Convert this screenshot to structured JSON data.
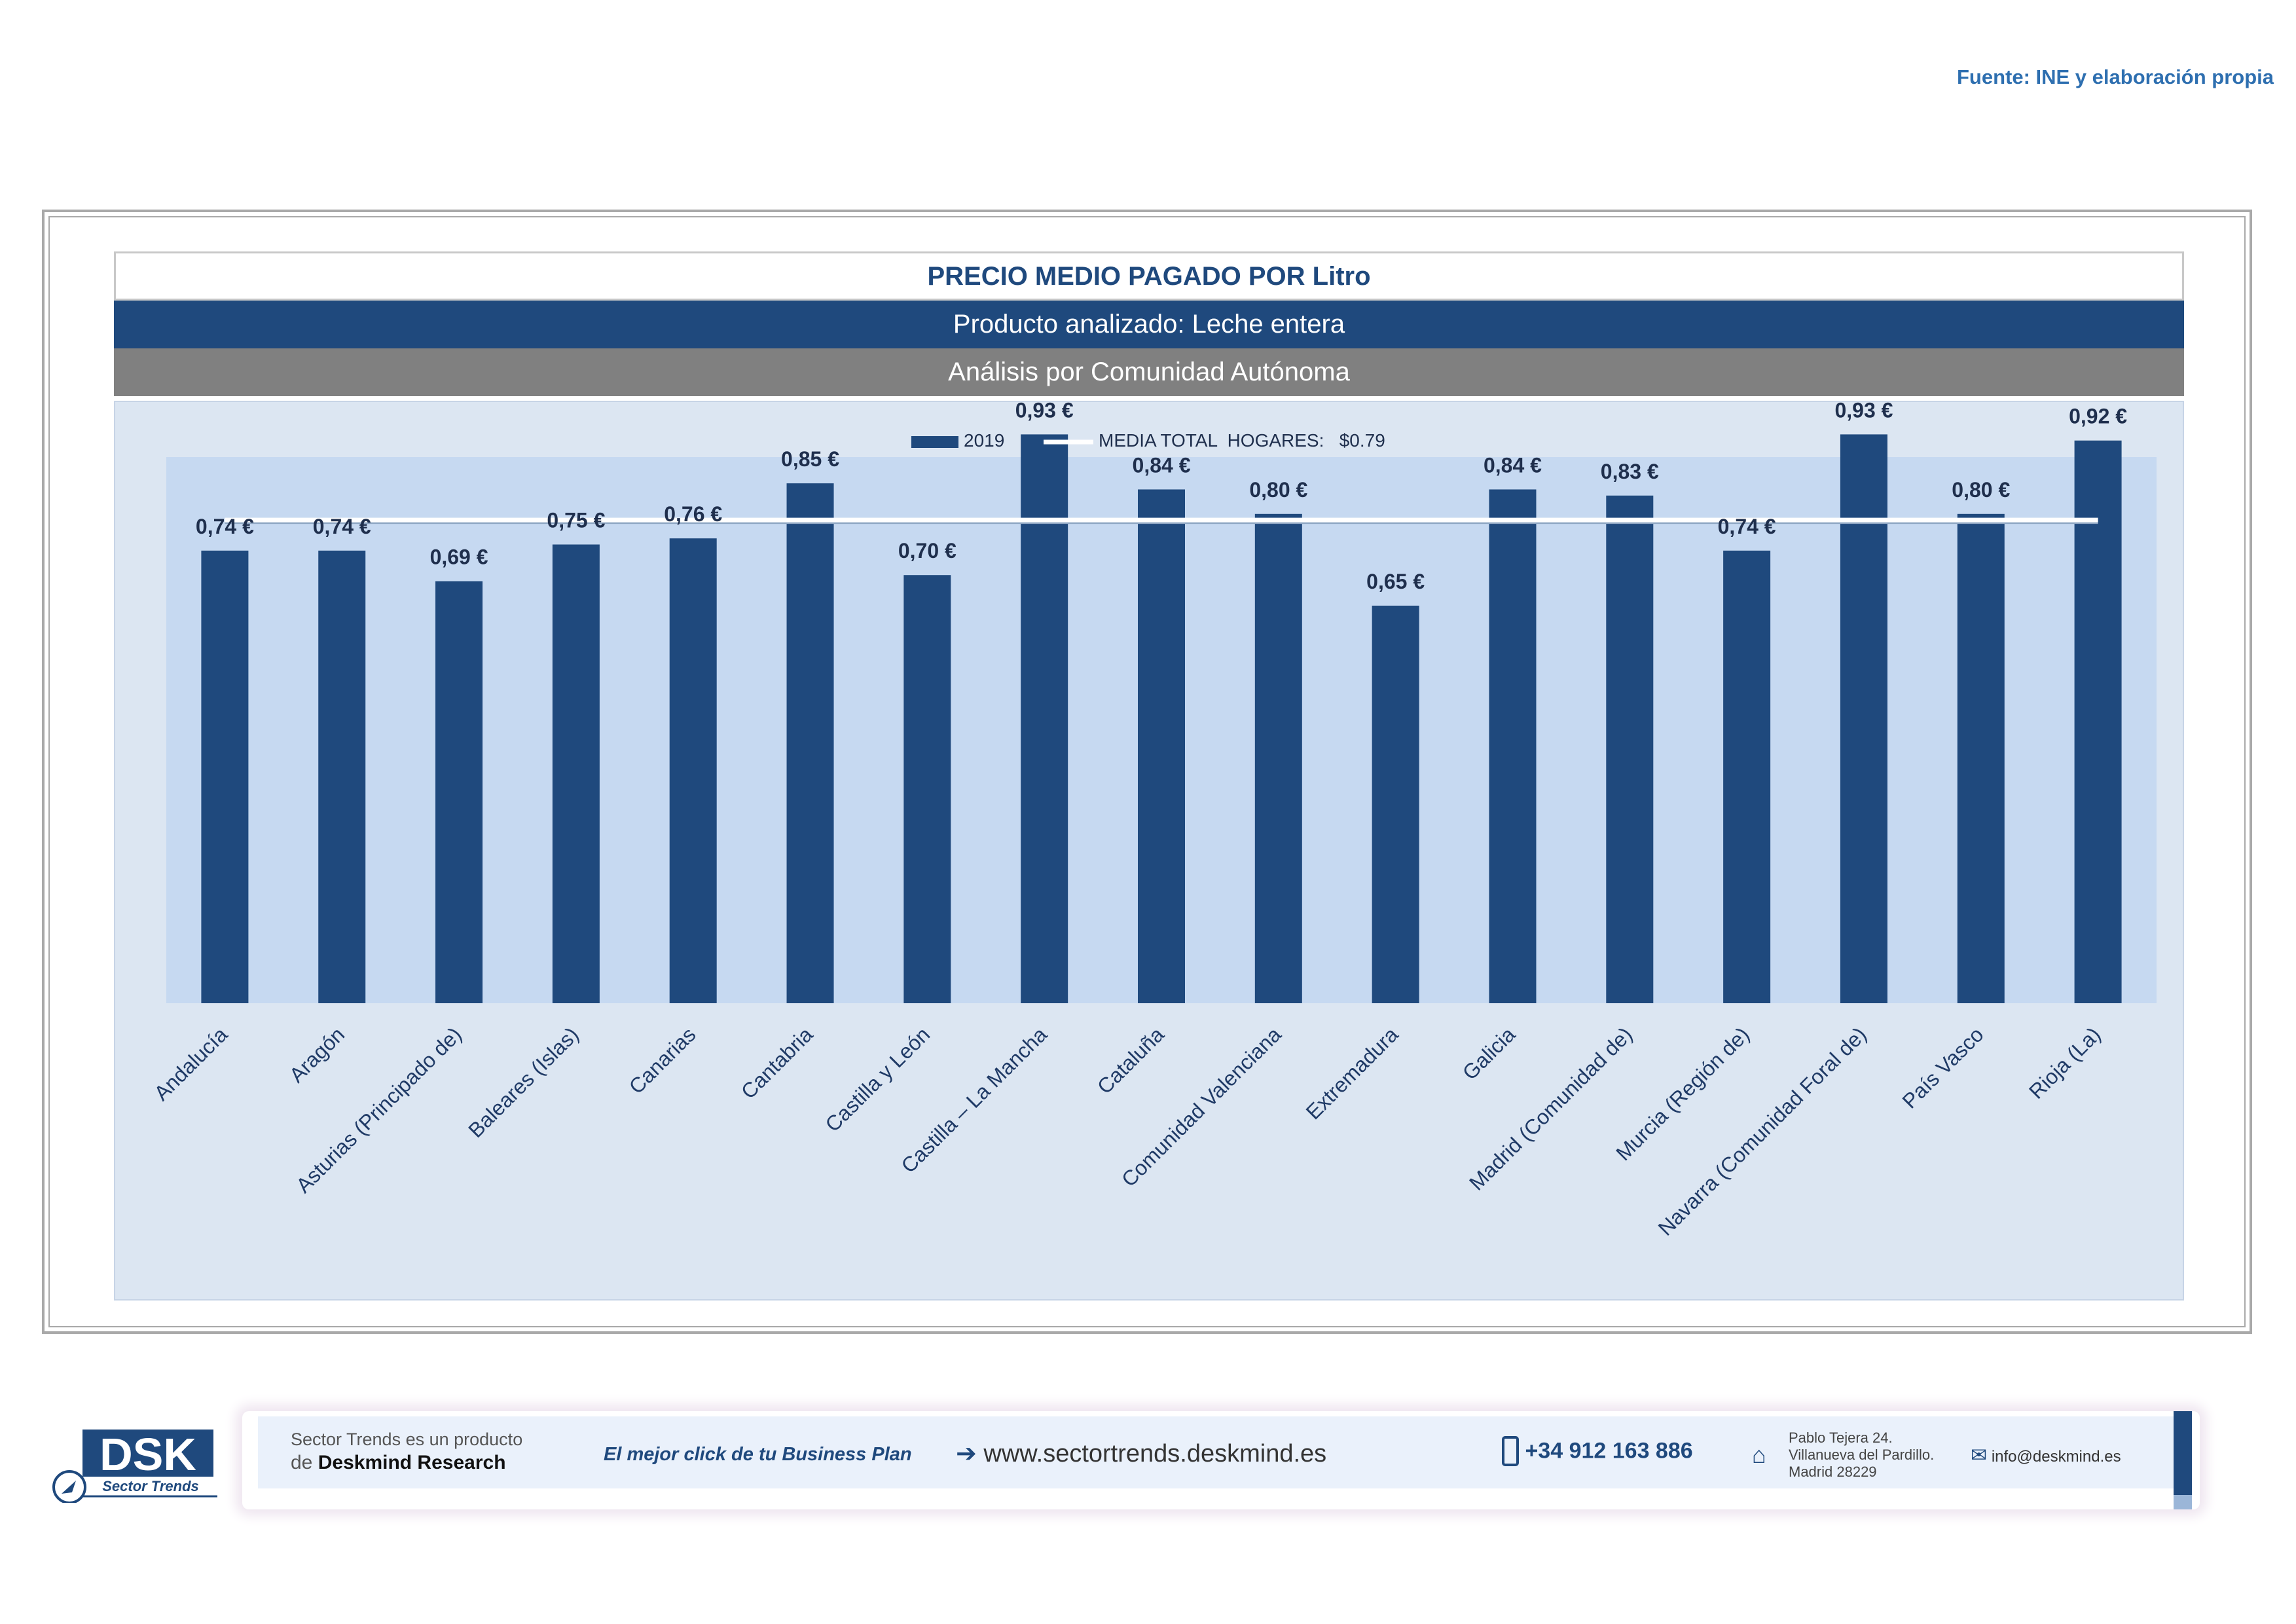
{
  "source_note": "Fuente: INE y elaboración propia",
  "header": {
    "title": "PRECIO MEDIO PAGADO POR Litro",
    "product": "Producto analizado: Leche entera",
    "analysis": "Análisis por Comunidad Autónoma"
  },
  "chart_data": {
    "type": "bar",
    "title": "PRECIO MEDIO PAGADO POR Litro",
    "categories": [
      "Andalucía",
      "Aragón",
      "Asturias (Principado de)",
      "Baleares (Islas)",
      "Canarias",
      "Cantabria",
      "Castilla y León",
      "Castilla – La Mancha",
      "Cataluña",
      "Comunidad Valenciana",
      "Extremadura",
      "Galicia",
      "Madrid (Comunidad de)",
      "Murcia (Región de)",
      "Navarra (Comunidad Foral de)",
      "País Vasco",
      "Rioja (La)"
    ],
    "series": [
      {
        "name": "2019",
        "values": [
          0.74,
          0.74,
          0.69,
          0.75,
          0.76,
          0.85,
          0.7,
          0.93,
          0.84,
          0.8,
          0.65,
          0.84,
          0.83,
          0.74,
          0.93,
          0.8,
          0.92
        ]
      }
    ],
    "value_labels": [
      "0,74 €",
      "0,74 €",
      "0,69 €",
      "0,75 €",
      "0,76 €",
      "0,85 €",
      "0,70 €",
      "0,93 €",
      "0,84 €",
      "0,80 €",
      "0,65 €",
      "0,84 €",
      "0,83 €",
      "0,74 €",
      "0,93 €",
      "0,80 €",
      "0,92 €"
    ],
    "reference_line": {
      "name": "MEDIA TOTAL  HOGARES:   $0.79",
      "value": 0.79
    },
    "legend": {
      "series_label": "2019",
      "line_label": "MEDIA TOTAL  HOGARES:   $0.79",
      "position": "top-center"
    },
    "ylim": [
      0,
      1.0
    ],
    "xlabel": "",
    "ylabel": "",
    "grid": false
  },
  "colors": {
    "bar": "#1f497d",
    "plot_bg": "#c6d9f1",
    "chart_bg": "#dce6f2",
    "line": "#ffffff",
    "label": "#1f2f4d",
    "accent": "#2e6fb0"
  },
  "footer": {
    "product_line1": "Sector Trends es un producto",
    "product_line2_prefix": "de",
    "product_line2_brand": "Deskmind Research",
    "slogan": "El mejor click de tu Business Plan",
    "website": "www.sectortrends.deskmind.es",
    "phone": "+34 912 163 886",
    "address_line1": "Pablo Tejera 24.",
    "address_line2": "Villanueva del Pardillo.",
    "address_line3": "Madrid 28229",
    "email": "info@deskmind.es",
    "logo_text": "DSK",
    "logo_subtitle": "Sector Trends"
  },
  "icons": [
    "arrow-right-icon",
    "phone-icon",
    "home-icon",
    "mail-icon",
    "rocket-icon"
  ]
}
